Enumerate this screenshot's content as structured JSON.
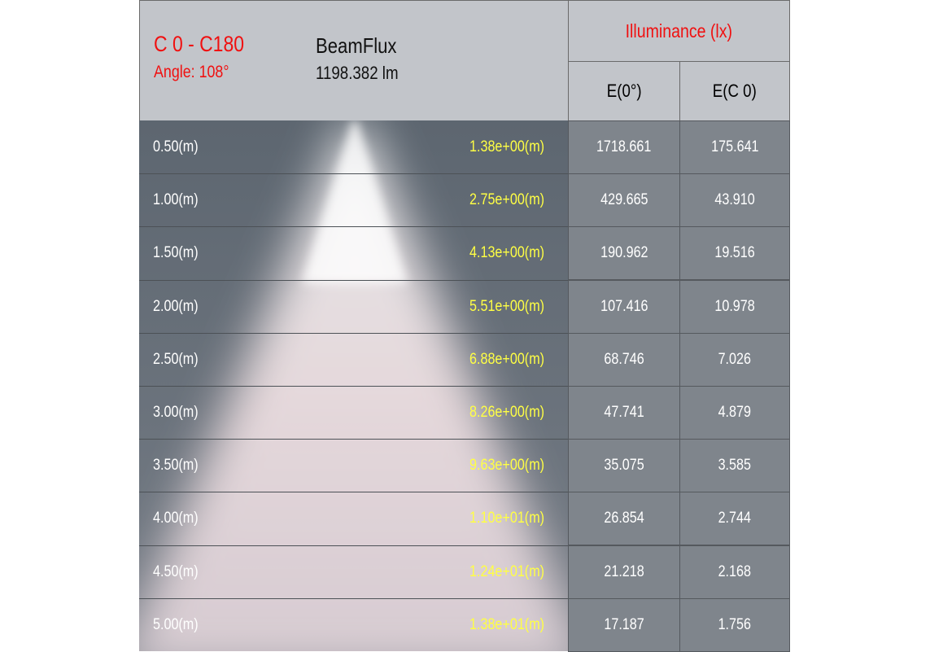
{
  "header": {
    "plane": "C 0 - C180",
    "angle": "Angle: 108°",
    "beamflux_label": "BeamFlux",
    "beamflux_value": "1198.382 lm",
    "illuminance_title": "Illuminance (lx)",
    "col1": "E(0°)",
    "col2": "E(C 0)"
  },
  "colors": {
    "accent_red": "#f01010",
    "diameter_yellow": "#ffff44",
    "panel_bg": "#c2c5ca",
    "beam_bg": "#5f6870"
  },
  "rows": [
    {
      "distance": "0.50(m)",
      "diameter": "1.38e+00(m)",
      "e0": "1718.661",
      "ec0": "175.641"
    },
    {
      "distance": "1.00(m)",
      "diameter": "2.75e+00(m)",
      "e0": "429.665",
      "ec0": "43.910"
    },
    {
      "distance": "1.50(m)",
      "diameter": "4.13e+00(m)",
      "e0": "190.962",
      "ec0": "19.516"
    },
    {
      "distance": "2.00(m)",
      "diameter": "5.51e+00(m)",
      "e0": "107.416",
      "ec0": "10.978"
    },
    {
      "distance": "2.50(m)",
      "diameter": "6.88e+00(m)",
      "e0": "68.746",
      "ec0": "7.026"
    },
    {
      "distance": "3.00(m)",
      "diameter": "8.26e+00(m)",
      "e0": "47.741",
      "ec0": "4.879"
    },
    {
      "distance": "3.50(m)",
      "diameter": "9.63e+00(m)",
      "e0": "35.075",
      "ec0": "3.585"
    },
    {
      "distance": "4.00(m)",
      "diameter": "1.10e+01(m)",
      "e0": "26.854",
      "ec0": "2.744"
    },
    {
      "distance": "4.50(m)",
      "diameter": "1.24e+01(m)",
      "e0": "21.218",
      "ec0": "2.168"
    },
    {
      "distance": "5.00(m)",
      "diameter": "1.38e+01(m)",
      "e0": "17.187",
      "ec0": "1.756"
    }
  ]
}
